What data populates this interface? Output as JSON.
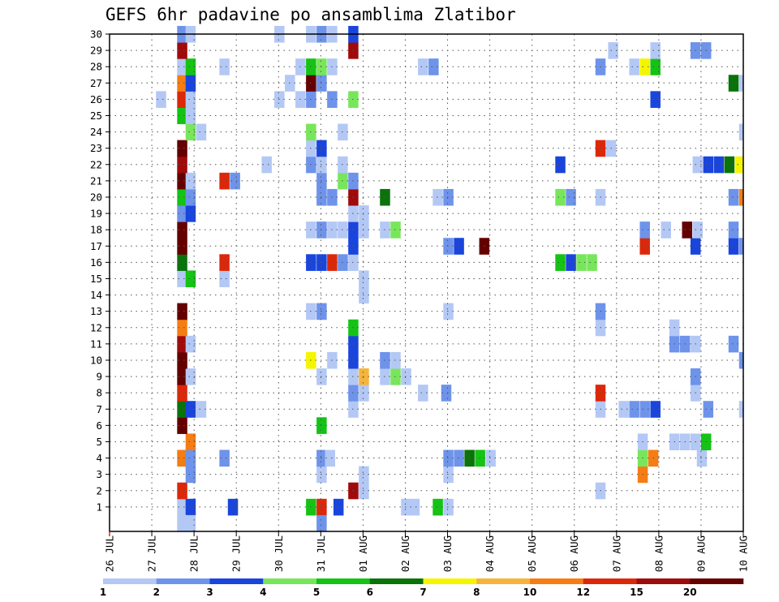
{
  "chart_data": {
    "type": "heatmap",
    "title": "GEFS 6hr padavine po ansamblima Zlatibor",
    "x_ticks": [
      "26 JUL",
      "27 JUL",
      "28 JUL",
      "29 JUL",
      "30 JUL",
      "31 JUL",
      "01 AUG",
      "02 AUG",
      "03 AUG",
      "04 AUG",
      "05 AUG",
      "06 AUG",
      "07 AUG",
      "08 AUG",
      "09 AUG",
      "10 AUG"
    ],
    "y_ticks": [
      "1",
      "2",
      "3",
      "4",
      "5",
      "6",
      "7",
      "8",
      "9",
      "10",
      "11",
      "12",
      "13",
      "14",
      "15",
      "16",
      "17",
      "18",
      "19",
      "20",
      "21",
      "22",
      "23",
      "24",
      "25",
      "26",
      "27",
      "28",
      "29",
      "30"
    ],
    "xlim": [
      0,
      15
    ],
    "ylim": [
      0,
      30
    ],
    "x_units": "days since 26 JUL",
    "colorbar": {
      "labels": [
        "1",
        "2",
        "3",
        "4",
        "5",
        "6",
        "7",
        "8",
        "10",
        "12",
        "15",
        "20"
      ],
      "colors": [
        "#b4c8f5",
        "#6e93ea",
        "#1945dd",
        "#78e65a",
        "#14c314",
        "#0a730a",
        "#f5f500",
        "#f5b43c",
        "#f57d14",
        "#dc280a",
        "#a00a0a",
        "#640000"
      ]
    },
    "grid": true,
    "cells": [
      {
        "m": 1,
        "t": 1.6,
        "c": 0
      },
      {
        "m": 1,
        "t": 1.8,
        "c": 2
      },
      {
        "m": 1,
        "t": 2.8,
        "c": 2
      },
      {
        "m": 1,
        "t": 4.65,
        "c": 4
      },
      {
        "m": 1,
        "t": 4.9,
        "c": 9
      },
      {
        "m": 1,
        "t": 5.3,
        "c": 2
      },
      {
        "m": 1,
        "t": 6.9,
        "c": 0
      },
      {
        "m": 1,
        "t": 7.1,
        "c": 0
      },
      {
        "m": 1,
        "t": 7.65,
        "c": 4
      },
      {
        "m": 1,
        "t": 7.9,
        "c": 0
      },
      {
        "m": 2,
        "t": 1.6,
        "c": 9
      },
      {
        "m": 2,
        "t": 5.65,
        "c": 10
      },
      {
        "m": 2,
        "t": 5.9,
        "c": 0
      },
      {
        "m": 2,
        "t": 11.5,
        "c": 0
      },
      {
        "m": 3,
        "t": 1.8,
        "c": 1
      },
      {
        "m": 3,
        "t": 4.9,
        "c": 0
      },
      {
        "m": 3,
        "t": 5.9,
        "c": 0
      },
      {
        "m": 3,
        "t": 7.9,
        "c": 0
      },
      {
        "m": 3,
        "t": 12.5,
        "c": 8
      },
      {
        "m": 4,
        "t": 1.6,
        "c": 8
      },
      {
        "m": 4,
        "t": 1.8,
        "c": 1
      },
      {
        "m": 4,
        "t": 2.6,
        "c": 1
      },
      {
        "m": 4,
        "t": 4.9,
        "c": 1
      },
      {
        "m": 4,
        "t": 5.1,
        "c": 0
      },
      {
        "m": 4,
        "t": 7.9,
        "c": 1
      },
      {
        "m": 4,
        "t": 8.15,
        "c": 1
      },
      {
        "m": 4,
        "t": 8.4,
        "c": 5
      },
      {
        "m": 4,
        "t": 8.65,
        "c": 4
      },
      {
        "m": 4,
        "t": 8.9,
        "c": 0
      },
      {
        "m": 4,
        "t": 12.5,
        "c": 3
      },
      {
        "m": 4,
        "t": 12.75,
        "c": 8
      },
      {
        "m": 4,
        "t": 13.9,
        "c": 0
      },
      {
        "m": 5,
        "t": 1.8,
        "c": 8
      },
      {
        "m": 5,
        "t": 12.5,
        "c": 0
      },
      {
        "m": 5,
        "t": 13.25,
        "c": 0
      },
      {
        "m": 5,
        "t": 13.5,
        "c": 0
      },
      {
        "m": 5,
        "t": 13.75,
        "c": 0
      },
      {
        "m": 5,
        "t": 14.0,
        "c": 4
      },
      {
        "m": 6,
        "t": 1.6,
        "c": 11
      },
      {
        "m": 6,
        "t": 4.9,
        "c": 4
      },
      {
        "m": 7,
        "t": 1.6,
        "c": 5
      },
      {
        "m": 7,
        "t": 1.8,
        "c": 2
      },
      {
        "m": 7,
        "t": 2.05,
        "c": 0
      },
      {
        "m": 7,
        "t": 5.65,
        "c": 0
      },
      {
        "m": 7,
        "t": 11.5,
        "c": 0
      },
      {
        "m": 7,
        "t": 12.05,
        "c": 0
      },
      {
        "m": 7,
        "t": 12.3,
        "c": 1
      },
      {
        "m": 7,
        "t": 12.55,
        "c": 1
      },
      {
        "m": 7,
        "t": 12.8,
        "c": 2
      },
      {
        "m": 7,
        "t": 14.05,
        "c": 1
      },
      {
        "m": 7,
        "t": 14.9,
        "c": 0
      },
      {
        "m": 8,
        "t": 1.6,
        "c": 9
      },
      {
        "m": 8,
        "t": 5.65,
        "c": 1
      },
      {
        "m": 8,
        "t": 5.9,
        "c": 0
      },
      {
        "m": 8,
        "t": 7.3,
        "c": 0
      },
      {
        "m": 8,
        "t": 7.85,
        "c": 1
      },
      {
        "m": 8,
        "t": 11.5,
        "c": 9
      },
      {
        "m": 8,
        "t": 13.75,
        "c": 0
      },
      {
        "m": 9,
        "t": 1.6,
        "c": 11
      },
      {
        "m": 9,
        "t": 1.8,
        "c": 0
      },
      {
        "m": 9,
        "t": 4.9,
        "c": 0
      },
      {
        "m": 9,
        "t": 5.65,
        "c": 0
      },
      {
        "m": 9,
        "t": 5.9,
        "c": 7
      },
      {
        "m": 9,
        "t": 6.4,
        "c": 0
      },
      {
        "m": 9,
        "t": 6.65,
        "c": 3
      },
      {
        "m": 9,
        "t": 6.9,
        "c": 0
      },
      {
        "m": 9,
        "t": 13.75,
        "c": 1
      },
      {
        "m": 10,
        "t": 1.6,
        "c": 11
      },
      {
        "m": 10,
        "t": 4.65,
        "c": 6
      },
      {
        "m": 10,
        "t": 5.15,
        "c": 0
      },
      {
        "m": 10,
        "t": 5.65,
        "c": 2
      },
      {
        "m": 10,
        "t": 6.4,
        "c": 1
      },
      {
        "m": 10,
        "t": 6.65,
        "c": 0
      },
      {
        "m": 10,
        "t": 14.9,
        "c": 1
      },
      {
        "m": 11,
        "t": 1.6,
        "c": 10
      },
      {
        "m": 11,
        "t": 1.8,
        "c": 0
      },
      {
        "m": 11,
        "t": 5.65,
        "c": 2
      },
      {
        "m": 11,
        "t": 13.25,
        "c": 1
      },
      {
        "m": 11,
        "t": 13.5,
        "c": 1
      },
      {
        "m": 11,
        "t": 13.75,
        "c": 0
      },
      {
        "m": 11,
        "t": 14.65,
        "c": 1
      },
      {
        "m": 12,
        "t": 1.6,
        "c": 8
      },
      {
        "m": 12,
        "t": 5.65,
        "c": 4
      },
      {
        "m": 12,
        "t": 11.5,
        "c": 0
      },
      {
        "m": 12,
        "t": 13.25,
        "c": 0
      },
      {
        "m": 13,
        "t": 1.6,
        "c": 11
      },
      {
        "m": 13,
        "t": 4.65,
        "c": 0
      },
      {
        "m": 13,
        "t": 4.9,
        "c": 1
      },
      {
        "m": 13,
        "t": 7.9,
        "c": 0
      },
      {
        "m": 13,
        "t": 11.5,
        "c": 1
      },
      {
        "m": 14,
        "t": 5.9,
        "c": 0
      },
      {
        "m": 15,
        "t": 1.6,
        "c": 0
      },
      {
        "m": 15,
        "t": 1.8,
        "c": 4
      },
      {
        "m": 15,
        "t": 2.6,
        "c": 0
      },
      {
        "m": 15,
        "t": 5.9,
        "c": 0
      },
      {
        "m": 16,
        "t": 1.6,
        "c": 5
      },
      {
        "m": 16,
        "t": 2.6,
        "c": 9
      },
      {
        "m": 16,
        "t": 4.65,
        "c": 2
      },
      {
        "m": 16,
        "t": 4.9,
        "c": 2
      },
      {
        "m": 16,
        "t": 5.15,
        "c": 9
      },
      {
        "m": 16,
        "t": 5.4,
        "c": 1
      },
      {
        "m": 16,
        "t": 5.65,
        "c": 0
      },
      {
        "m": 16,
        "t": 10.55,
        "c": 4
      },
      {
        "m": 16,
        "t": 10.8,
        "c": 2
      },
      {
        "m": 16,
        "t": 11.05,
        "c": 3
      },
      {
        "m": 16,
        "t": 11.3,
        "c": 3
      },
      {
        "m": 17,
        "t": 1.6,
        "c": 11
      },
      {
        "m": 17,
        "t": 5.65,
        "c": 2
      },
      {
        "m": 17,
        "t": 7.9,
        "c": 1
      },
      {
        "m": 17,
        "t": 8.15,
        "c": 2
      },
      {
        "m": 17,
        "t": 8.75,
        "c": 11
      },
      {
        "m": 17,
        "t": 12.55,
        "c": 9
      },
      {
        "m": 17,
        "t": 13.75,
        "c": 2
      },
      {
        "m": 17,
        "t": 14.65,
        "c": 2
      },
      {
        "m": 17,
        "t": 14.9,
        "c": 1
      },
      {
        "m": 18,
        "t": 1.6,
        "c": 11
      },
      {
        "m": 18,
        "t": 4.65,
        "c": 0
      },
      {
        "m": 18,
        "t": 4.9,
        "c": 1
      },
      {
        "m": 18,
        "t": 5.15,
        "c": 0
      },
      {
        "m": 18,
        "t": 5.4,
        "c": 0
      },
      {
        "m": 18,
        "t": 5.65,
        "c": 2
      },
      {
        "m": 18,
        "t": 5.9,
        "c": 0
      },
      {
        "m": 18,
        "t": 6.4,
        "c": 0
      },
      {
        "m": 18,
        "t": 6.65,
        "c": 3
      },
      {
        "m": 18,
        "t": 12.55,
        "c": 1
      },
      {
        "m": 18,
        "t": 13.05,
        "c": 0
      },
      {
        "m": 18,
        "t": 13.55,
        "c": 11
      },
      {
        "m": 18,
        "t": 13.8,
        "c": 0
      },
      {
        "m": 18,
        "t": 14.65,
        "c": 1
      },
      {
        "m": 19,
        "t": 1.6,
        "c": 1
      },
      {
        "m": 19,
        "t": 1.8,
        "c": 2
      },
      {
        "m": 19,
        "t": 5.65,
        "c": 0
      },
      {
        "m": 19,
        "t": 5.9,
        "c": 0
      },
      {
        "m": 20,
        "t": 1.6,
        "c": 4
      },
      {
        "m": 20,
        "t": 1.8,
        "c": 1
      },
      {
        "m": 20,
        "t": 4.9,
        "c": 1
      },
      {
        "m": 20,
        "t": 5.15,
        "c": 1
      },
      {
        "m": 20,
        "t": 5.65,
        "c": 10
      },
      {
        "m": 20,
        "t": 6.4,
        "c": 5
      },
      {
        "m": 20,
        "t": 7.65,
        "c": 0
      },
      {
        "m": 20,
        "t": 7.9,
        "c": 1
      },
      {
        "m": 20,
        "t": 10.55,
        "c": 3
      },
      {
        "m": 20,
        "t": 10.8,
        "c": 1
      },
      {
        "m": 20,
        "t": 11.5,
        "c": 0
      },
      {
        "m": 20,
        "t": 14.65,
        "c": 1
      },
      {
        "m": 20,
        "t": 14.9,
        "c": 8
      },
      {
        "m": 21,
        "t": 1.6,
        "c": 11
      },
      {
        "m": 21,
        "t": 1.8,
        "c": 0
      },
      {
        "m": 21,
        "t": 2.6,
        "c": 9
      },
      {
        "m": 21,
        "t": 2.85,
        "c": 1
      },
      {
        "m": 21,
        "t": 4.9,
        "c": 1
      },
      {
        "m": 21,
        "t": 5.4,
        "c": 3
      },
      {
        "m": 21,
        "t": 5.65,
        "c": 1
      },
      {
        "m": 22,
        "t": 1.6,
        "c": 10
      },
      {
        "m": 22,
        "t": 3.6,
        "c": 0
      },
      {
        "m": 22,
        "t": 4.65,
        "c": 1
      },
      {
        "m": 22,
        "t": 4.9,
        "c": 0
      },
      {
        "m": 22,
        "t": 5.4,
        "c": 0
      },
      {
        "m": 22,
        "t": 10.55,
        "c": 2
      },
      {
        "m": 22,
        "t": 13.8,
        "c": 0
      },
      {
        "m": 22,
        "t": 14.05,
        "c": 2
      },
      {
        "m": 22,
        "t": 14.3,
        "c": 2
      },
      {
        "m": 22,
        "t": 14.55,
        "c": 5
      },
      {
        "m": 22,
        "t": 14.8,
        "c": 6
      },
      {
        "m": 23,
        "t": 1.6,
        "c": 11
      },
      {
        "m": 23,
        "t": 4.65,
        "c": 0
      },
      {
        "m": 23,
        "t": 4.9,
        "c": 2
      },
      {
        "m": 23,
        "t": 11.5,
        "c": 9
      },
      {
        "m": 23,
        "t": 11.75,
        "c": 0
      },
      {
        "m": 24,
        "t": 1.8,
        "c": 3
      },
      {
        "m": 24,
        "t": 2.05,
        "c": 0
      },
      {
        "m": 24,
        "t": 4.65,
        "c": 3
      },
      {
        "m": 24,
        "t": 5.4,
        "c": 0
      },
      {
        "m": 24,
        "t": 14.9,
        "c": 0
      },
      {
        "m": 25,
        "t": 1.6,
        "c": 4
      },
      {
        "m": 25,
        "t": 1.8,
        "c": 0
      },
      {
        "m": 26,
        "t": 1.1,
        "c": 0
      },
      {
        "m": 26,
        "t": 1.6,
        "c": 9
      },
      {
        "m": 26,
        "t": 1.8,
        "c": 0
      },
      {
        "m": 26,
        "t": 3.9,
        "c": 0
      },
      {
        "m": 26,
        "t": 4.4,
        "c": 0
      },
      {
        "m": 26,
        "t": 4.65,
        "c": 1
      },
      {
        "m": 26,
        "t": 5.15,
        "c": 1
      },
      {
        "m": 26,
        "t": 5.65,
        "c": 3
      },
      {
        "m": 26,
        "t": 12.8,
        "c": 2
      },
      {
        "m": 27,
        "t": 1.6,
        "c": 8
      },
      {
        "m": 27,
        "t": 1.8,
        "c": 2
      },
      {
        "m": 27,
        "t": 4.15,
        "c": 0
      },
      {
        "m": 27,
        "t": 4.65,
        "c": 11
      },
      {
        "m": 27,
        "t": 4.9,
        "c": 1
      },
      {
        "m": 27,
        "t": 14.65,
        "c": 5
      },
      {
        "m": 27,
        "t": 14.9,
        "c": 0
      },
      {
        "m": 28,
        "t": 1.6,
        "c": 0
      },
      {
        "m": 28,
        "t": 1.8,
        "c": 4
      },
      {
        "m": 28,
        "t": 2.6,
        "c": 0
      },
      {
        "m": 28,
        "t": 4.4,
        "c": 0
      },
      {
        "m": 28,
        "t": 4.65,
        "c": 4
      },
      {
        "m": 28,
        "t": 4.9,
        "c": 3
      },
      {
        "m": 28,
        "t": 5.15,
        "c": 0
      },
      {
        "m": 28,
        "t": 7.3,
        "c": 0
      },
      {
        "m": 28,
        "t": 7.55,
        "c": 1
      },
      {
        "m": 28,
        "t": 11.5,
        "c": 1
      },
      {
        "m": 28,
        "t": 12.3,
        "c": 0
      },
      {
        "m": 28,
        "t": 12.55,
        "c": 6
      },
      {
        "m": 28,
        "t": 12.8,
        "c": 4
      },
      {
        "m": 29,
        "t": 1.6,
        "c": 10
      },
      {
        "m": 29,
        "t": 5.65,
        "c": 10
      },
      {
        "m": 29,
        "t": 11.8,
        "c": 0
      },
      {
        "m": 29,
        "t": 12.8,
        "c": 0
      },
      {
        "m": 29,
        "t": 13.75,
        "c": 1
      },
      {
        "m": 29,
        "t": 14.0,
        "c": 1
      },
      {
        "m": 30,
        "t": 1.6,
        "c": 1
      },
      {
        "m": 30,
        "t": 1.8,
        "c": 0
      },
      {
        "m": 30,
        "t": 3.9,
        "c": 0
      },
      {
        "m": 30,
        "t": 4.65,
        "c": 0
      },
      {
        "m": 30,
        "t": 4.9,
        "c": 1
      },
      {
        "m": 30,
        "t": 5.15,
        "c": 0
      },
      {
        "m": 30,
        "t": 5.65,
        "c": 2
      },
      {
        "m": 0,
        "t": 1.6,
        "c": 0
      },
      {
        "m": 0,
        "t": 1.8,
        "c": 0
      },
      {
        "m": 0,
        "t": 4.9,
        "c": 1
      }
    ]
  }
}
